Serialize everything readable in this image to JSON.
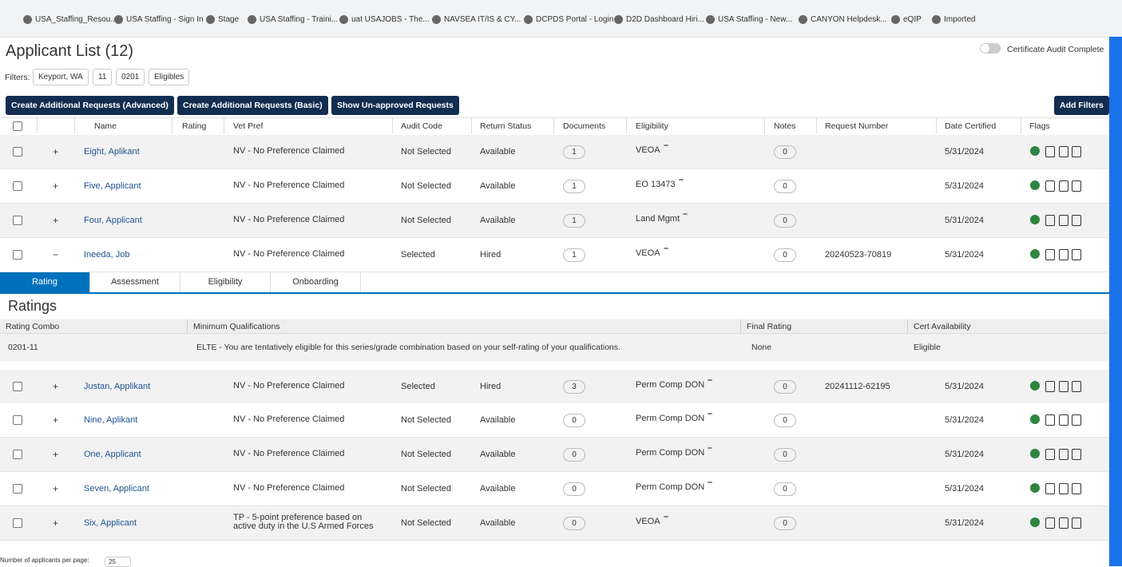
{
  "bookmarks": [
    "USA_Staffing_Resou...",
    "USA Staffing - Sign In",
    "Stage",
    "USA Staffing - Traini...",
    "uat USAJOBS - The...",
    "NAVSEA IT/IS & CY...",
    "DCPDS Portal - Login",
    "D2D Dashboard Hiri...",
    "USA Staffing - New...",
    "CANYON Helpdesk...",
    "eQIP",
    "Imported"
  ],
  "header": {
    "title": "Applicant List (12)",
    "toggle_label": "Certificate Audit Complete"
  },
  "filters": {
    "label": "Filters:",
    "items": [
      "Keyport, WA",
      "11",
      "0201",
      "Eligibles"
    ]
  },
  "buttons": [
    "Create Additional Requests (Advanced)",
    "Create Additional Requests (Basic)",
    "Show Un-approved Requests"
  ],
  "add_filters": "Add Filters",
  "table": {
    "columns": [
      "Name",
      "Rating",
      "Vet Pref",
      "Audit Code",
      "Return Status",
      "Documents",
      "Eligibility",
      "Notes",
      "Request Number",
      "Date Certified",
      "Flags"
    ],
    "rows": [
      {
        "expander": "+",
        "name": "Eight, Aplikant",
        "vet_pref": "NV - No Preference Claimed",
        "audit_code": "Not Selected",
        "return_status": "Available",
        "documents": "1",
        "eligibility": "VEOA",
        "notes": "0",
        "date_certified": "5/31/2024"
      },
      {
        "expander": "+",
        "name": "Five, Applicant",
        "vet_pref": "NV - No Preference Claimed",
        "audit_code": "Not Selected",
        "return_status": "Available",
        "documents": "1",
        "eligibility": "EO 13473",
        "notes": "0",
        "date_certified": "5/31/2024"
      },
      {
        "expander": "+",
        "name": "Four, Applicant",
        "vet_pref": "NV - No Preference Claimed",
        "audit_code": "Not Selected",
        "return_status": "Available",
        "documents": "1",
        "eligibility": "Land Mgmt",
        "notes": "0",
        "date_certified": "5/31/2024"
      },
      {
        "expander": "−",
        "name": "Ineeda, Job",
        "vet_pref": "NV - No Preference Claimed",
        "audit_code": "Selected",
        "return_status": "Hired",
        "documents": "1",
        "eligibility": "VEOA",
        "notes": "0",
        "request_number": "20240523-70819",
        "date_certified": "5/31/2024"
      },
      {
        "expander": "+",
        "name": "Justan, Applikant",
        "vet_pref": "NV - No Preference Claimed",
        "audit_code": "Selected",
        "return_status": "Hired",
        "documents": "3",
        "eligibility": "Perm Comp DON",
        "notes": "0",
        "request_number": "20241112-62195",
        "date_certified": "5/31/2024"
      },
      {
        "expander": "+",
        "name": "Nine, Aplikant",
        "vet_pref": "NV - No Preference Claimed",
        "audit_code": "Not Selected",
        "return_status": "Available",
        "documents": "0",
        "eligibility": "Perm Comp DON",
        "notes": "0",
        "date_certified": "5/31/2024"
      },
      {
        "expander": "+",
        "name": "One, Applicant",
        "vet_pref": "NV - No Preference Claimed",
        "audit_code": "Not Selected",
        "return_status": "Available",
        "documents": "0",
        "eligibility": "Perm Comp DON",
        "notes": "0",
        "date_certified": "5/31/2024"
      },
      {
        "expander": "+",
        "name": "Seven, Applicant",
        "vet_pref": "NV - No Preference Claimed",
        "audit_code": "Not Selected",
        "return_status": "Available",
        "documents": "0",
        "eligibility": "Perm Comp DON",
        "notes": "0",
        "date_certified": "5/31/2024"
      },
      {
        "expander": "+",
        "name": "Six, Applicant",
        "vet_pref": "TP - 5-point preference based on active duty in the U.S Armed Forces",
        "audit_code": "Not Selected",
        "return_status": "Available",
        "documents": "0",
        "eligibility": "VEOA",
        "notes": "0",
        "date_certified": "5/31/2024"
      }
    ]
  },
  "tabs": [
    "Rating",
    "Assessment",
    "Eligibility",
    "Onboarding"
  ],
  "ratings": {
    "title": "Ratings",
    "columns": [
      "Rating Combo",
      "Minimum Qualifications",
      "Final Rating",
      "Cert Availability"
    ],
    "rows": [
      [
        "0201-11",
        "ELTE - You are tentatively eligible for this series/grade combination based on your self-rating of your qualifications.",
        "None",
        "Eligible"
      ]
    ]
  },
  "footer": {
    "label": "Number of applicants per page:",
    "per_page": "25"
  }
}
